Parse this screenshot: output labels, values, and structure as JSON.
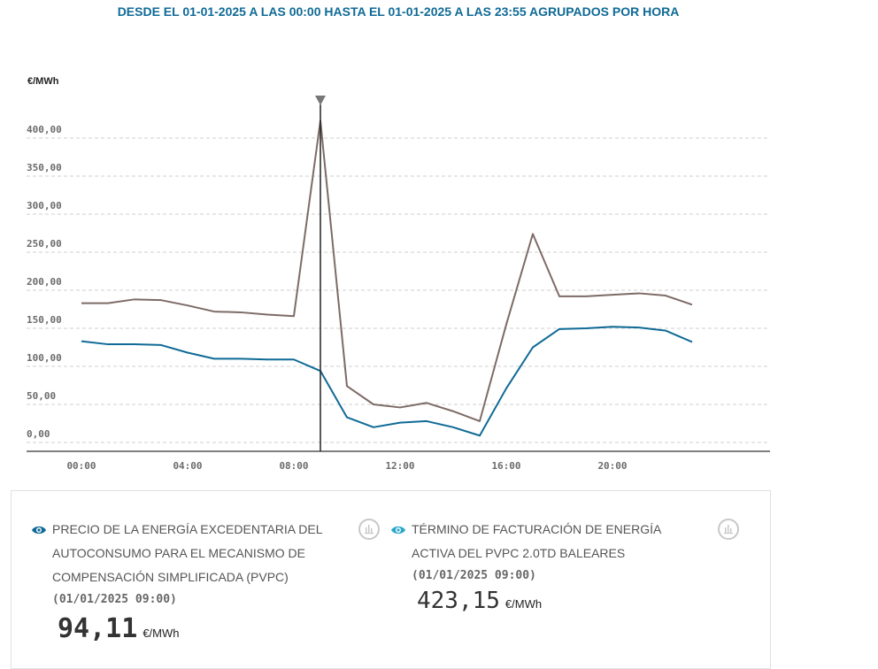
{
  "subtitle": "DESDE EL 01-01-2025 A LAS 00:00 HASTA EL 01-01-2025 A LAS 23:55 AGRUPADOS POR HORA",
  "y_unit": "€/MWh",
  "chart_data": {
    "type": "line",
    "x": [
      "00:00",
      "01:00",
      "02:00",
      "03:00",
      "04:00",
      "05:00",
      "06:00",
      "07:00",
      "08:00",
      "09:00",
      "10:00",
      "11:00",
      "12:00",
      "13:00",
      "14:00",
      "15:00",
      "16:00",
      "17:00",
      "18:00",
      "19:00",
      "20:00",
      "21:00",
      "22:00",
      "23:00"
    ],
    "x_tick_labels": [
      "00:00",
      "04:00",
      "08:00",
      "12:00",
      "16:00",
      "20:00"
    ],
    "y_tick_labels": [
      "0,00",
      "50,00",
      "100,00",
      "150,00",
      "200,00",
      "250,00",
      "300,00",
      "350,00",
      "400,00"
    ],
    "ylim": [
      0,
      400
    ],
    "series": [
      {
        "name": "PRECIO DE LA ENERGÍA EXCEDENTARIA DEL AUTOCONSUMO PARA EL MECANISMO DE COMPENSACIÓN SIMPLIFICADA (PVPC)",
        "color": "#0f6a96",
        "values": [
          133,
          129,
          129,
          128,
          118,
          110,
          110,
          109,
          109,
          94,
          33,
          20,
          26,
          28,
          20,
          9,
          71,
          125,
          149,
          150,
          152,
          151,
          147,
          132
        ]
      },
      {
        "name": "TÉRMINO DE FACTURACIÓN DE ENERGÍA ACTIVA DEL PVPC 2.0TD BALEARES",
        "color": "#7d6b66",
        "values": [
          183,
          183,
          188,
          187,
          180,
          172,
          171,
          168,
          166,
          423,
          74,
          50,
          46,
          52,
          41,
          28,
          155,
          274,
          192,
          192,
          194,
          196,
          193,
          181
        ]
      }
    ],
    "cursor_index": 9,
    "grid": "horizontal dashed",
    "legend": "bottom"
  },
  "legend": [
    {
      "title": "PRECIO DE LA ENERGÍA EXCEDENTARIA DEL AUTOCONSUMO PARA EL MECANISMO DE COMPENSACIÓN SIMPLIFICADA (PVPC)",
      "date": "(01/01/2025 09:00)",
      "value": "94,11",
      "unit": "€/MWh",
      "eye_color": "#0f6a96"
    },
    {
      "title": "TÉRMINO DE FACTURACIÓN DE ENERGÍA ACTIVA DEL PVPC 2.0TD BALEARES",
      "date": "(01/01/2025 09:00)",
      "value": "423,15",
      "unit": "€/MWh",
      "eye_color": "#2aa7c9"
    }
  ]
}
